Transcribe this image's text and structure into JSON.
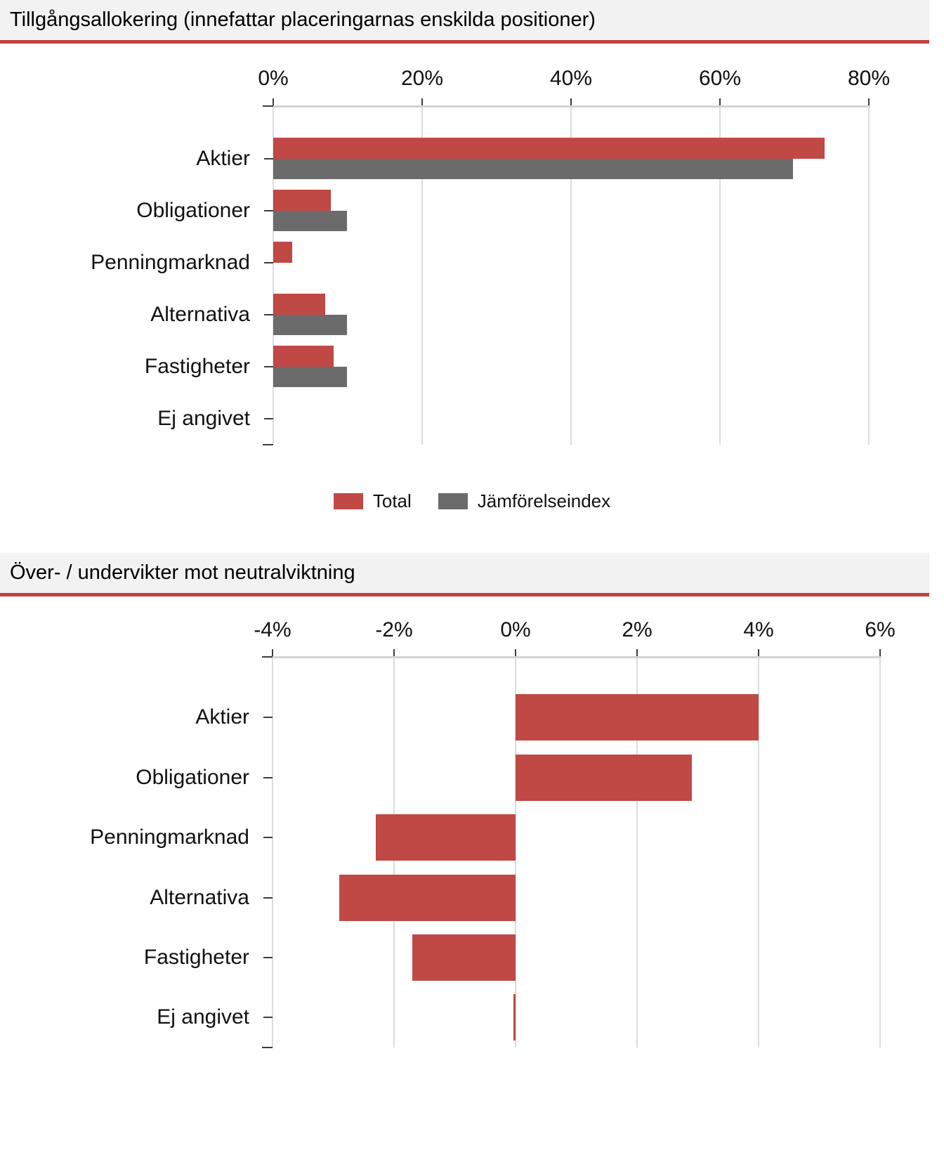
{
  "colors": {
    "total_red": "#c04845",
    "benchmark_gray": "#6b6b6b",
    "header_rule_red": "#bf413d",
    "header_background": "#f2f2f2",
    "gridline": "#dcdcdc",
    "axis_line": "#d3d3d3",
    "tick_mark": "#3d3d3d"
  },
  "chart_data": [
    {
      "type": "bar",
      "orientation": "horizontal",
      "title": "Tillgångsallokering (innefattar placeringarnas enskilda positioner)",
      "categories": [
        "Aktier",
        "Obligationer",
        "Penningmarknad",
        "Alternativa",
        "Fastigheter",
        "Ej angivet"
      ],
      "series": [
        {
          "name": "Total",
          "color": "#c04845",
          "values": [
            74.1,
            7.7,
            2.5,
            7.0,
            8.1,
            0
          ]
        },
        {
          "name": "Jämförelseindex",
          "color": "#6b6b6b",
          "values": [
            69.8,
            9.9,
            0,
            9.9,
            9.9,
            0
          ]
        }
      ],
      "unit": "%",
      "xlim": [
        0,
        80
      ],
      "xticks": [
        "0%",
        "20%",
        "40%",
        "60%",
        "80%"
      ],
      "xtick_values": [
        0,
        20,
        40,
        60,
        80
      ],
      "grid": true,
      "legend_position": "bottom"
    },
    {
      "type": "bar",
      "orientation": "horizontal",
      "title": "Över- / undervikter mot neutralviktning",
      "categories": [
        "Aktier",
        "Obligationer",
        "Penningmarknad",
        "Alternativa",
        "Fastigheter",
        "Ej angivet"
      ],
      "series": [
        {
          "name": "Total",
          "color": "#c04845",
          "values": [
            4.0,
            2.9,
            -2.3,
            -2.9,
            -1.7,
            -0.04
          ]
        }
      ],
      "unit": "%",
      "xlim": [
        -4,
        6
      ],
      "xticks": [
        "-4%",
        "-2%",
        "0%",
        "2%",
        "4%",
        "6%"
      ],
      "xtick_values": [
        -4,
        -2,
        0,
        2,
        4,
        6
      ],
      "grid": true,
      "legend_position": "none"
    }
  ]
}
